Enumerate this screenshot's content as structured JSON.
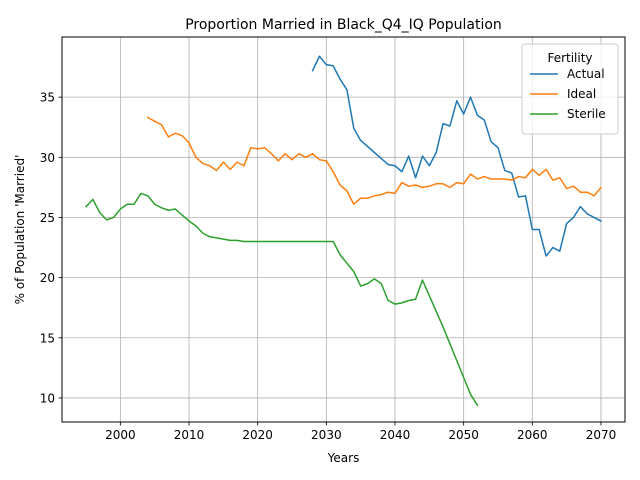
{
  "chart_data": {
    "type": "line",
    "title": "Proportion Married in Black_Q4_IQ Population",
    "xlabel": "Years",
    "ylabel": "% of Population 'Married'",
    "xlim": [
      1991.5,
      2073.5
    ],
    "ylim": [
      8.0,
      40.0
    ],
    "xticks": [
      2000,
      2010,
      2020,
      2030,
      2040,
      2050,
      2060,
      2070
    ],
    "yticks": [
      10,
      15,
      20,
      25,
      30,
      35
    ],
    "grid": true,
    "legend": {
      "title": "Fertility",
      "placement": "top-right"
    },
    "series": [
      {
        "name": "Actual",
        "color": "#1f77b4",
        "x": [
          2028,
          2029,
          2030,
          2031,
          2032,
          2033,
          2034,
          2035,
          2036,
          2037,
          2038,
          2039,
          2040,
          2041,
          2042,
          2043,
          2044,
          2045,
          2046,
          2047,
          2048,
          2049,
          2050,
          2051,
          2052,
          2053,
          2054,
          2055,
          2056,
          2057,
          2058,
          2059,
          2060,
          2061,
          2062,
          2063,
          2064,
          2065,
          2066,
          2067,
          2068,
          2069,
          2070
        ],
        "y": [
          37.2,
          38.4,
          37.7,
          37.6,
          36.5,
          35.6,
          32.4,
          31.4,
          30.9,
          30.4,
          29.9,
          29.4,
          29.3,
          28.8,
          30.1,
          28.3,
          30.1,
          29.3,
          30.4,
          32.8,
          32.6,
          34.7,
          33.6,
          35.0,
          33.5,
          33.1,
          31.3,
          30.8,
          28.9,
          28.7,
          26.7,
          26.8,
          24.0,
          24.0,
          21.8,
          22.5,
          22.2,
          24.5,
          25.0,
          25.9,
          25.3,
          25.0,
          24.7
        ]
      },
      {
        "name": "Ideal",
        "color": "#ff7f0e",
        "x": [
          2004,
          2005,
          2006,
          2007,
          2008,
          2009,
          2010,
          2011,
          2012,
          2013,
          2014,
          2015,
          2016,
          2017,
          2018,
          2019,
          2020,
          2021,
          2022,
          2023,
          2024,
          2025,
          2026,
          2027,
          2028,
          2029,
          2030,
          2031,
          2032,
          2033,
          2034,
          2035,
          2036,
          2037,
          2038,
          2039,
          2040,
          2041,
          2042,
          2043,
          2044,
          2045,
          2046,
          2047,
          2048,
          2049,
          2050,
          2051,
          2052,
          2053,
          2054,
          2055,
          2056,
          2057,
          2058,
          2059,
          2060,
          2061,
          2062,
          2063,
          2064,
          2065,
          2066,
          2067,
          2068,
          2069,
          2070
        ],
        "y": [
          33.3,
          33.0,
          32.7,
          31.7,
          32.0,
          31.8,
          31.2,
          30.0,
          29.5,
          29.3,
          28.9,
          29.6,
          29.0,
          29.6,
          29.3,
          30.8,
          30.7,
          30.8,
          30.3,
          29.7,
          30.3,
          29.8,
          30.3,
          30.0,
          30.3,
          29.8,
          29.7,
          28.8,
          27.7,
          27.2,
          26.1,
          26.6,
          26.6,
          26.8,
          26.9,
          27.1,
          27.0,
          27.9,
          27.6,
          27.7,
          27.5,
          27.6,
          27.8,
          27.8,
          27.5,
          27.9,
          27.8,
          28.6,
          28.2,
          28.4,
          28.2,
          28.2,
          28.2,
          28.1,
          28.4,
          28.3,
          29.0,
          28.5,
          29.0,
          28.1,
          28.3,
          27.4,
          27.6,
          27.1,
          27.1,
          26.8,
          27.5
        ]
      },
      {
        "name": "Sterile",
        "color": "#2ca02c",
        "x": [
          1995,
          1996,
          1997,
          1998,
          1999,
          2000,
          2001,
          2002,
          2003,
          2004,
          2005,
          2006,
          2007,
          2008,
          2009,
          2010,
          2011,
          2012,
          2013,
          2014,
          2015,
          2016,
          2017,
          2018,
          2019,
          2020,
          2021,
          2022,
          2023,
          2024,
          2025,
          2026,
          2027,
          2028,
          2029,
          2030,
          2031,
          2032,
          2033,
          2034,
          2035,
          2036,
          2037,
          2038,
          2039,
          2040,
          2041,
          2042,
          2043,
          2044,
          2045,
          2046,
          2047,
          2048,
          2049,
          2050,
          2051,
          2052
        ],
        "y": [
          25.9,
          26.5,
          25.4,
          24.8,
          25.0,
          25.7,
          26.1,
          26.1,
          27.0,
          26.8,
          26.1,
          25.8,
          25.6,
          25.7,
          25.2,
          24.7,
          24.3,
          23.7,
          23.4,
          23.3,
          23.2,
          23.1,
          23.1,
          23.0,
          23.0,
          23.0,
          23.0,
          23.0,
          23.0,
          23.0,
          23.0,
          23.0,
          23.0,
          23.0,
          23.0,
          23.0,
          23.0,
          21.9,
          21.2,
          20.5,
          19.3,
          19.5,
          19.9,
          19.5,
          18.1,
          17.8,
          17.9,
          18.1,
          18.2,
          19.8,
          18.5,
          17.2,
          15.9,
          14.5,
          13.1,
          11.7,
          10.3,
          9.4
        ]
      }
    ]
  }
}
